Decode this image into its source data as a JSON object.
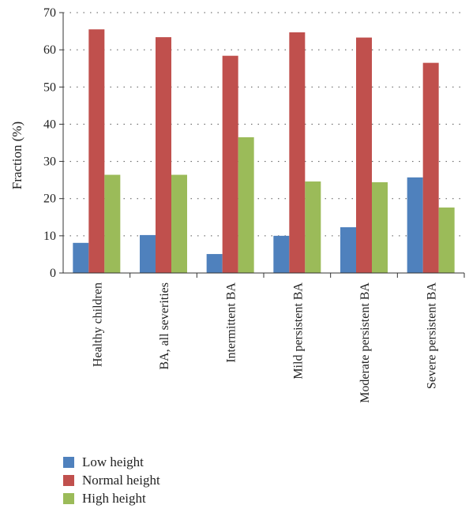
{
  "chart_data": {
    "type": "bar",
    "title": "",
    "xlabel": "",
    "ylabel": "Fraction (%)",
    "ylim": [
      0,
      70
    ],
    "yticks": [
      0,
      10,
      20,
      30,
      40,
      50,
      60,
      70
    ],
    "grid": true,
    "legend_position": "bottom-left",
    "categories": [
      "Healthy children",
      "BA, all severities",
      "Intermittent BA",
      "Mild persistent BA",
      "Moderate persistent BA",
      "Severe persistent BA"
    ],
    "series": [
      {
        "name": "Low height",
        "color": "#4f81bd",
        "values": [
          8.1,
          10.2,
          5.1,
          10.0,
          12.3,
          25.7
        ]
      },
      {
        "name": "Normal height",
        "color": "#c0504d",
        "values": [
          65.5,
          63.4,
          58.4,
          64.7,
          63.3,
          56.5
        ]
      },
      {
        "name": "High height",
        "color": "#9bbb59",
        "values": [
          26.4,
          26.4,
          36.5,
          24.6,
          24.4,
          17.6
        ]
      }
    ]
  }
}
